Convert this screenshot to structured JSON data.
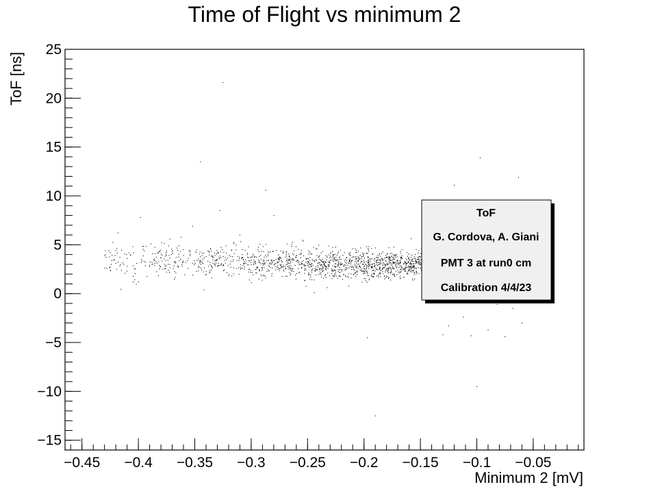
{
  "chart_data": {
    "type": "scatter",
    "title": "Time of Flight vs minimum 2",
    "xlabel": "Minimum 2 [mV]",
    "ylabel": "ToF [ns]",
    "xlim": [
      -0.465,
      -0.005
    ],
    "ylim": [
      -16,
      25
    ],
    "xticks": [
      -0.45,
      -0.4,
      -0.35,
      -0.3,
      -0.25,
      -0.2,
      -0.15,
      -0.1,
      -0.05
    ],
    "xtick_labels": [
      "−0.45",
      "−0.4",
      "−0.35",
      "−0.3",
      "−0.25",
      "−0.2",
      "−0.15",
      "−0.1",
      "−0.05"
    ],
    "yticks": [
      -15,
      -10,
      -5,
      0,
      5,
      10,
      15,
      20,
      25
    ],
    "ytick_labels": [
      "−15",
      "−10",
      "−5",
      "0",
      "5",
      "10",
      "15",
      "20",
      "25"
    ],
    "grid": false,
    "marker_color": "#000000",
    "legend_box": {
      "position": "right-center",
      "lines": [
        "ToF",
        "G. Cordova, A. Giani",
        "PMT 3 at run0 cm",
        "Calibration 4/4/23"
      ]
    },
    "points": [
      [
        -0.43,
        3.9
      ],
      [
        -0.428,
        2.6
      ],
      [
        -0.425,
        4.2
      ],
      [
        -0.42,
        3.1
      ],
      [
        -0.418,
        6.2
      ],
      [
        -0.415,
        2.4
      ],
      [
        -0.41,
        3.6
      ],
      [
        -0.405,
        4.8
      ],
      [
        -0.4,
        1.2
      ],
      [
        -0.398,
        7.8
      ],
      [
        -0.395,
        3.3
      ],
      [
        -0.39,
        2.9
      ],
      [
        -0.385,
        4.1
      ],
      [
        -0.38,
        3.7
      ],
      [
        -0.375,
        2.2
      ],
      [
        -0.372,
        5.6
      ],
      [
        -0.368,
        3.2
      ],
      [
        -0.365,
        4.4
      ],
      [
        -0.36,
        3.9
      ],
      [
        -0.356,
        2.6
      ],
      [
        -0.352,
        6.9
      ],
      [
        -0.348,
        3.4
      ],
      [
        -0.345,
        13.5
      ],
      [
        -0.342,
        0.4
      ],
      [
        -0.34,
        3.8
      ],
      [
        -0.336,
        4.6
      ],
      [
        -0.332,
        3.0
      ],
      [
        -0.328,
        8.5
      ],
      [
        -0.325,
        21.6
      ],
      [
        -0.322,
        3.5
      ],
      [
        -0.318,
        2.7
      ],
      [
        -0.315,
        4.1
      ],
      [
        -0.31,
        6.0
      ],
      [
        -0.306,
        3.3
      ],
      [
        -0.302,
        2.5
      ],
      [
        -0.298,
        3.9
      ],
      [
        -0.294,
        4.5
      ],
      [
        -0.29,
        3.1
      ],
      [
        -0.287,
        10.6
      ],
      [
        -0.284,
        2.8
      ],
      [
        -0.28,
        8.0
      ],
      [
        -0.276,
        3.6
      ],
      [
        -0.272,
        4.2
      ],
      [
        -0.268,
        3.0
      ],
      [
        -0.264,
        2.4
      ],
      [
        -0.26,
        3.7
      ],
      [
        -0.256,
        4.0
      ],
      [
        -0.252,
        2.9
      ],
      [
        -0.248,
        3.4
      ],
      [
        -0.244,
        0.1
      ],
      [
        -0.24,
        3.8
      ],
      [
        -0.236,
        3.2
      ],
      [
        -0.232,
        2.6
      ],
      [
        -0.228,
        4.3
      ],
      [
        -0.224,
        3.5
      ],
      [
        -0.22,
        3.0
      ],
      [
        -0.216,
        2.5
      ],
      [
        -0.212,
        3.9
      ],
      [
        -0.208,
        3.3
      ],
      [
        -0.204,
        2.8
      ],
      [
        -0.2,
        4.1
      ],
      [
        -0.197,
        -4.5
      ],
      [
        -0.194,
        3.0
      ],
      [
        -0.19,
        -12.5
      ],
      [
        -0.186,
        3.4
      ],
      [
        -0.182,
        2.7
      ],
      [
        -0.178,
        3.8
      ],
      [
        -0.174,
        3.1
      ],
      [
        -0.17,
        2.4
      ],
      [
        -0.166,
        3.6
      ],
      [
        -0.162,
        4.2
      ],
      [
        -0.158,
        2.9
      ],
      [
        -0.154,
        3.3
      ],
      [
        -0.15,
        2.6
      ],
      [
        -0.146,
        3.7
      ],
      [
        -0.142,
        3.0
      ],
      [
        -0.138,
        2.2
      ],
      [
        -0.134,
        3.9
      ],
      [
        -0.13,
        -4.2
      ],
      [
        -0.125,
        -3.3
      ],
      [
        -0.12,
        11.1
      ],
      [
        -0.112,
        -2.4
      ],
      [
        -0.105,
        -4.3
      ],
      [
        -0.1,
        -9.5
      ],
      [
        -0.097,
        13.9
      ],
      [
        -0.09,
        -3.7
      ],
      [
        -0.082,
        -1.1
      ],
      [
        -0.075,
        -4.4
      ],
      [
        -0.068,
        -1.5
      ],
      [
        -0.063,
        11.9
      ],
      [
        -0.06,
        -3.0
      ]
    ],
    "band_density": {
      "bins": [
        {
          "x": [
            -0.43,
            -0.39
          ],
          "y_mean": 3.4,
          "y_sd": 0.95,
          "n": 60
        },
        {
          "x": [
            -0.39,
            -0.35
          ],
          "y_mean": 3.4,
          "y_sd": 0.9,
          "n": 100
        },
        {
          "x": [
            -0.35,
            -0.3
          ],
          "y_mean": 3.3,
          "y_sd": 0.85,
          "n": 170
        },
        {
          "x": [
            -0.3,
            -0.25
          ],
          "y_mean": 3.1,
          "y_sd": 0.8,
          "n": 260
        },
        {
          "x": [
            -0.25,
            -0.2
          ],
          "y_mean": 3.0,
          "y_sd": 0.75,
          "n": 360
        },
        {
          "x": [
            -0.2,
            -0.15
          ],
          "y_mean": 2.95,
          "y_sd": 0.7,
          "n": 460
        },
        {
          "x": [
            -0.15,
            -0.13
          ],
          "y_mean": 2.9,
          "y_sd": 0.7,
          "n": 160
        }
      ]
    }
  }
}
